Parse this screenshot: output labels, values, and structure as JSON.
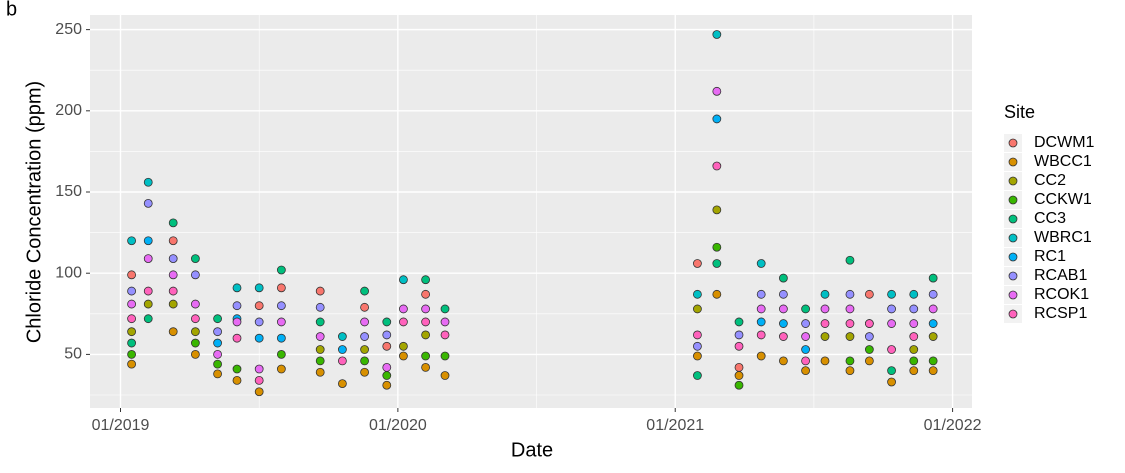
{
  "chart_data": {
    "type": "scatter",
    "panel_label": "b",
    "x_label": "Date",
    "y_label": "Chloride Concentration (ppm)",
    "legend_title": "Site",
    "legend_position": "right",
    "grid": true,
    "background": "#EBEBEB",
    "xlim": [
      2018.89,
      2022.07
    ],
    "ylim": [
      17,
      259
    ],
    "xticks": [
      {
        "value": 2019,
        "label": "01/2019"
      },
      {
        "value": 2020,
        "label": "01/2020"
      },
      {
        "value": 2021,
        "label": "01/2021"
      },
      {
        "value": 2022,
        "label": "01/2022"
      }
    ],
    "x_minor_ticks": [
      2019.5,
      2020.5,
      2021.5
    ],
    "yticks": [
      50,
      100,
      150,
      200,
      250
    ],
    "y_minor_ticks": [
      25,
      75,
      125,
      175,
      225
    ],
    "x": [
      2019.04,
      2019.1,
      2019.19,
      2019.27,
      2019.35,
      2019.42,
      2019.5,
      2019.58,
      2019.72,
      2019.8,
      2019.88,
      2019.96,
      2020.02,
      2020.1,
      2020.17,
      2021.08,
      2021.15,
      2021.23,
      2021.31,
      2021.39,
      2021.47,
      2021.54,
      2021.63,
      2021.7,
      2021.78,
      2021.86,
      2021.93
    ],
    "series": [
      {
        "name": "DCWM1",
        "color": "#F8766D",
        "values": [
          99,
          null,
          120,
          null,
          null,
          null,
          80,
          91,
          89,
          null,
          79,
          55,
          null,
          87,
          null,
          106,
          null,
          42,
          null,
          null,
          null,
          null,
          null,
          87,
          null,
          null,
          null
        ]
      },
      {
        "name": "WBCC1",
        "color": "#D89000",
        "values": [
          44,
          null,
          64,
          50,
          38,
          34,
          27,
          41,
          39,
          32,
          39,
          31,
          49,
          42,
          37,
          49,
          87,
          37,
          49,
          46,
          40,
          46,
          40,
          46,
          33,
          40,
          40
        ]
      },
      {
        "name": "CC2",
        "color": "#A3A500",
        "values": [
          64,
          81,
          81,
          64,
          null,
          null,
          null,
          null,
          53,
          null,
          53,
          null,
          55,
          62,
          null,
          78,
          139,
          null,
          null,
          null,
          null,
          61,
          61,
          null,
          null,
          53,
          61
        ]
      },
      {
        "name": "CCKW1",
        "color": "#39B600",
        "values": [
          50,
          null,
          null,
          57,
          44,
          41,
          null,
          50,
          46,
          null,
          46,
          37,
          null,
          49,
          49,
          null,
          116,
          31,
          null,
          null,
          null,
          null,
          46,
          53,
          null,
          46,
          46
        ]
      },
      {
        "name": "CC3",
        "color": "#00BF7D",
        "values": [
          57,
          72,
          131,
          109,
          72,
          null,
          null,
          102,
          70,
          null,
          89,
          70,
          null,
          96,
          78,
          37,
          106,
          70,
          null,
          97,
          78,
          null,
          108,
          69,
          40,
          null,
          97
        ]
      },
      {
        "name": "WBRC1",
        "color": "#00BFC4",
        "values": [
          120,
          156,
          null,
          null,
          null,
          91,
          91,
          null,
          null,
          61,
          null,
          null,
          96,
          null,
          null,
          87,
          247,
          null,
          106,
          null,
          null,
          87,
          null,
          null,
          87,
          87,
          null
        ]
      },
      {
        "name": "RC1",
        "color": "#00B0F6",
        "values": [
          null,
          120,
          null,
          null,
          57,
          72,
          60,
          60,
          null,
          53,
          null,
          null,
          null,
          null,
          null,
          null,
          195,
          null,
          70,
          69,
          53,
          null,
          null,
          null,
          null,
          null,
          69
        ]
      },
      {
        "name": "RCAB1",
        "color": "#9590FF",
        "values": [
          89,
          143,
          109,
          99,
          64,
          80,
          70,
          80,
          79,
          null,
          61,
          62,
          null,
          null,
          null,
          55,
          null,
          62,
          87,
          87,
          69,
          null,
          87,
          61,
          78,
          78,
          87
        ]
      },
      {
        "name": "RCOK1",
        "color": "#E76BF3",
        "values": [
          81,
          109,
          99,
          81,
          50,
          70,
          41,
          70,
          61,
          null,
          70,
          42,
          78,
          78,
          70,
          null,
          212,
          null,
          78,
          78,
          61,
          78,
          78,
          null,
          69,
          69,
          78
        ]
      },
      {
        "name": "RCSP1",
        "color": "#FF62BC",
        "values": [
          72,
          89,
          89,
          72,
          null,
          60,
          34,
          null,
          null,
          46,
          null,
          null,
          70,
          70,
          62,
          62,
          166,
          55,
          62,
          61,
          46,
          69,
          69,
          69,
          53,
          61,
          null
        ]
      }
    ]
  }
}
